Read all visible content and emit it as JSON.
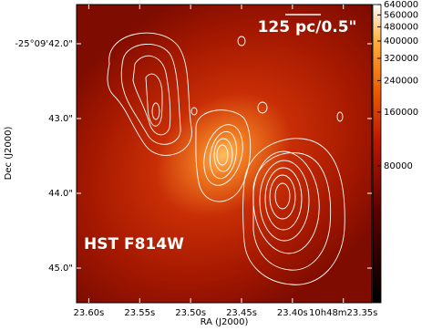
{
  "chart_data": {
    "type": "image",
    "xlabel": "RA (J2000)",
    "ylabel": "Dec (J2000)",
    "xlim": [
      23.612,
      23.322
    ],
    "xticks": [
      {
        "value": 23.6,
        "label": "23.60s"
      },
      {
        "value": 23.55,
        "label": "23.55s"
      },
      {
        "value": 23.5,
        "label": "23.50s"
      },
      {
        "value": 23.45,
        "label": "23.45s"
      },
      {
        "value": 23.4,
        "label": "23.40s"
      },
      {
        "value": 23.35,
        "label": "10h48m23.35s"
      }
    ],
    "ylim": [
      45.463,
      41.476
    ],
    "yticks": [
      {
        "value": 42,
        "label": "-25°09'42.0\""
      },
      {
        "value": 43,
        "label": "43.0\""
      },
      {
        "value": 44,
        "label": "44.0\""
      },
      {
        "value": 45,
        "label": "45.0\""
      }
    ],
    "colorbar": {
      "scale": "log",
      "clim": [
        13700,
        640000
      ],
      "ticks": [
        80000,
        160000,
        240000,
        320000,
        400000,
        480000,
        560000,
        640000
      ]
    },
    "annotations": [
      "125 pc/0.5\"",
      "HST F814W"
    ]
  }
}
